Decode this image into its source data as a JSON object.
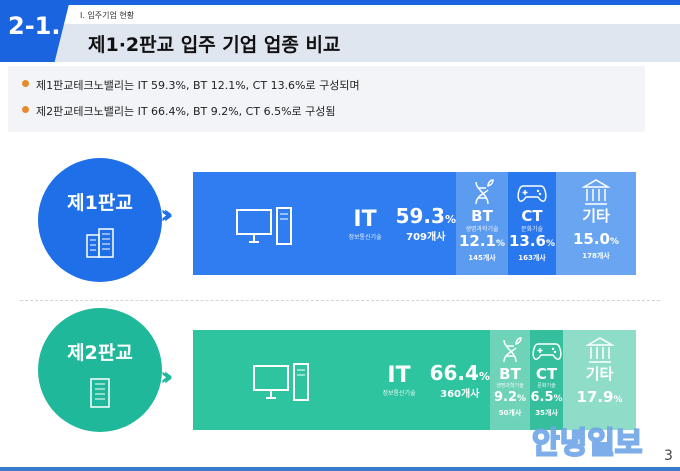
{
  "header": {
    "section_number": "2-1.",
    "breadcrumb": "Ⅰ. 입주기업 현황",
    "title": "제1·2판교 입주 기업 업종 비교"
  },
  "summary": [
    "제1판교테크노밸리는 IT 59.3%, BT 12.1%, CT 13.6%로 구성되며",
    "제2판교테크노밸리는 IT 66.4%, BT 9.2%, CT 6.5%로 구성됨"
  ],
  "colors": {
    "accent": "#1a64e0",
    "bullet": "#e68a2e",
    "pangyo1": "#2f7df0",
    "pangyo2": "#2ec4a0"
  },
  "rows": [
    {
      "label": "제1판교",
      "segments": [
        {
          "key": "IT",
          "sub": "정보통신기술",
          "pct": "59.3",
          "unit": "%",
          "count": "709개사",
          "icon": "computer-icon"
        },
        {
          "key": "BT",
          "sub": "생명과학기술",
          "pct": "12.1",
          "unit": "%",
          "count": "145개사",
          "icon": "dna-plant-icon"
        },
        {
          "key": "CT",
          "sub": "문화기술",
          "pct": "13.6",
          "unit": "%",
          "count": "163개사",
          "icon": "gamepad-icon"
        },
        {
          "key": "기타",
          "sub": "",
          "pct": "15.0",
          "unit": "%",
          "count": "178개사",
          "icon": "institution-icon"
        }
      ]
    },
    {
      "label": "제2판교",
      "segments": [
        {
          "key": "IT",
          "sub": "정보통신기술",
          "pct": "66.4",
          "unit": "%",
          "count": "360개사",
          "icon": "computer-icon"
        },
        {
          "key": "BT",
          "sub": "생명과학기술",
          "pct": "9.2",
          "unit": "%",
          "count": "50개사",
          "icon": "dna-plant-icon"
        },
        {
          "key": "CT",
          "sub": "문화기술",
          "pct": "6.5",
          "unit": "%",
          "count": "35개사",
          "icon": "gamepad-icon"
        },
        {
          "key": "기타",
          "sub": "",
          "pct": "17.9",
          "unit": "%",
          "count": "",
          "icon": "institution-icon"
        }
      ]
    }
  ],
  "watermark": "안녕일보",
  "page_number": "3"
}
